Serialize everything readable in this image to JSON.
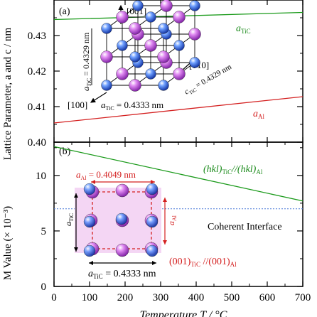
{
  "figure": {
    "ylabel_top": "Lattice Parameter, a and c / nm",
    "ylabel_bottom": "M Value (× 10⁻³)",
    "xlabel": "Temperature T / °C",
    "xticks": [
      "0",
      "100",
      "200",
      "300",
      "400",
      "500",
      "600",
      "700"
    ]
  },
  "panel_a": {
    "tag": "(a)",
    "yticks": [
      "0.40",
      "0.41",
      "0.42",
      "0.43"
    ],
    "inset": {
      "axis_001": "[001]",
      "axis_010": "[010]",
      "axis_100": "[100]",
      "c_label": "a",
      "c_sub": "TiC",
      "c_value": " = 0.4329 nm",
      "b_label": "a",
      "b_sub": "TiC",
      "b_value": " = 0.4329 nm",
      "a_label": "a",
      "a_sub": "TiC",
      "a_value": " = 0.4333 nm",
      "edge_a": "a",
      "edge_c": "c"
    },
    "label_tic": "a",
    "label_tic_sub": "TiC",
    "label_al": "a",
    "label_al_sub": "Al"
  },
  "panel_b": {
    "tag": "(b)",
    "yticks": [
      "0",
      "5",
      "10"
    ],
    "interface_label": "Coherent Interface",
    "hkl_label_main": "(hkl)",
    "hkl_label_sub1": "TiC",
    "hkl_label_mid": "//(hkl)",
    "hkl_label_sub2": "Al",
    "plane_label_main": "(001)",
    "plane_label_sub1": "TiC",
    "plane_label_mid": " //(001)",
    "plane_label_sub2": "Al",
    "inset": {
      "al_top": "a",
      "al_top_sub": "Al",
      "al_top_value": " = 0.4049 nm",
      "tic_left": "a",
      "tic_left_sub": "TiC",
      "al_right": "a",
      "al_right_sub": "Al",
      "tic_bottom": "a",
      "tic_bottom_sub": "TiC",
      "tic_bottom_value": " = 0.4333 nm"
    }
  },
  "colors": {
    "tic_line": "#1a9a1a",
    "al_line": "#d42020",
    "interface_line": "#4a7ad8",
    "atom_blue": "#1f4fd0",
    "atom_purple": "#c050e0",
    "inset_fill": "#f4d6f4",
    "dashed_red": "#d42020",
    "label_green": "#1a8a1a",
    "label_red": "#d42020"
  },
  "chart_data": [
    {
      "type": "line",
      "panel": "(a)",
      "xlabel": "Temperature T / °C",
      "ylabel": "Lattice Parameter, a and c / nm",
      "xlim": [
        0,
        700
      ],
      "ylim": [
        0.4,
        0.44
      ],
      "yticks": [
        0.4,
        0.41,
        0.42,
        0.43
      ],
      "series": [
        {
          "name": "a_TiC",
          "x": [
            0,
            700
          ],
          "y": [
            0.4345,
            0.4365
          ]
        },
        {
          "name": "a_Al",
          "x": [
            0,
            700
          ],
          "y": [
            0.4054,
            0.4128
          ]
        }
      ],
      "legend": "inline labels"
    },
    {
      "type": "line",
      "panel": "(b)",
      "xlabel": "Temperature T / °C",
      "ylabel": "M Value (× 10⁻³)",
      "xlim": [
        0,
        700
      ],
      "ylim": [
        0,
        13
      ],
      "yticks": [
        0,
        5,
        10
      ],
      "series": [
        {
          "name": "(hkl)_TiC//(hkl)_Al",
          "x": [
            0,
            700
          ],
          "y": [
            12.6,
            7.7
          ]
        },
        {
          "name": "Coherent Interface",
          "x": [
            0,
            700
          ],
          "y": [
            7.0,
            7.0
          ]
        }
      ]
    }
  ]
}
